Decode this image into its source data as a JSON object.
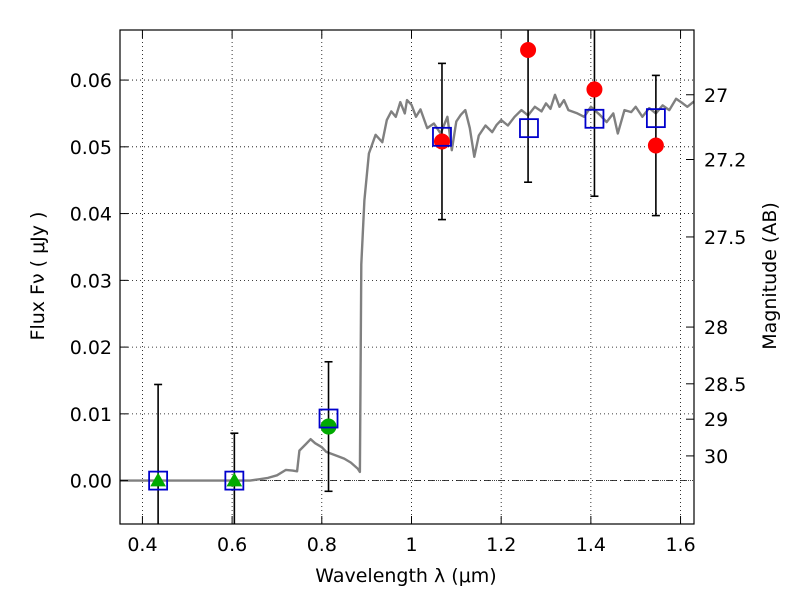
{
  "chart_data": {
    "type": "scatter",
    "xlabel": "Wavelength  λ (μm)",
    "ylabel": "Flux  Fν  ( μJy )",
    "y2label": "Magnitude (AB)",
    "xlim": [
      0.35,
      1.63
    ],
    "ylim": [
      -0.0065,
      0.0675
    ],
    "x_ticks": [
      0.4,
      0.6,
      0.8,
      1.0,
      1.2,
      1.4,
      1.6
    ],
    "x_tick_labels": [
      "0.4",
      "0.6",
      "0.8",
      "1",
      "1.2",
      "1.4",
      "1.6"
    ],
    "y_ticks": [
      0.0,
      0.01,
      0.02,
      0.03,
      0.04,
      0.05,
      0.06
    ],
    "y_tick_labels": [
      "0.00",
      "0.01",
      "0.02",
      "0.03",
      "0.04",
      "0.05",
      "0.06"
    ],
    "y2_ticks": [
      {
        "label": "27",
        "flux": 0.0578
      },
      {
        "label": "27.2",
        "flux": 0.0481
      },
      {
        "label": "27.5",
        "flux": 0.0365
      },
      {
        "label": "28",
        "flux": 0.023
      },
      {
        "label": "28.5",
        "flux": 0.0145
      },
      {
        "label": "29",
        "flux": 0.0092
      },
      {
        "label": "30",
        "flux": 0.0037
      }
    ],
    "grid": true,
    "zero_line": true,
    "colors": {
      "model": "#808080",
      "model_points": "#0000cc",
      "detections": "#ff0000",
      "nondetections": "#00aa00",
      "errorbars": "#000000"
    },
    "model_spectrum": [
      [
        0.35,
        0.0
      ],
      [
        0.6,
        0.0
      ],
      [
        0.64,
        0.0
      ],
      [
        0.66,
        0.0002
      ],
      [
        0.68,
        0.0004
      ],
      [
        0.7,
        0.0008
      ],
      [
        0.72,
        0.0016
      ],
      [
        0.735,
        0.0015
      ],
      [
        0.745,
        0.0014
      ],
      [
        0.75,
        0.0045
      ],
      [
        0.765,
        0.0055
      ],
      [
        0.775,
        0.0062
      ],
      [
        0.785,
        0.0056
      ],
      [
        0.8,
        0.005
      ],
      [
        0.81,
        0.0043
      ],
      [
        0.83,
        0.0038
      ],
      [
        0.85,
        0.0033
      ],
      [
        0.865,
        0.0027
      ],
      [
        0.88,
        0.0018
      ],
      [
        0.885,
        0.0013
      ],
      [
        0.888,
        0.0324
      ],
      [
        0.895,
        0.042
      ],
      [
        0.905,
        0.049
      ],
      [
        0.92,
        0.0518
      ],
      [
        0.935,
        0.0507
      ],
      [
        0.945,
        0.054
      ],
      [
        0.955,
        0.0553
      ],
      [
        0.965,
        0.0545
      ],
      [
        0.975,
        0.0567
      ],
      [
        0.985,
        0.055
      ],
      [
        0.99,
        0.057
      ],
      [
        1.0,
        0.0563
      ],
      [
        1.01,
        0.0545
      ],
      [
        1.02,
        0.0556
      ],
      [
        1.035,
        0.0528
      ],
      [
        1.05,
        0.0535
      ],
      [
        1.065,
        0.052
      ],
      [
        1.08,
        0.0545
      ],
      [
        1.09,
        0.0495
      ],
      [
        1.1,
        0.0538
      ],
      [
        1.11,
        0.0548
      ],
      [
        1.12,
        0.0555
      ],
      [
        1.13,
        0.0528
      ],
      [
        1.14,
        0.0485
      ],
      [
        1.15,
        0.0517
      ],
      [
        1.165,
        0.0532
      ],
      [
        1.18,
        0.0522
      ],
      [
        1.19,
        0.0533
      ],
      [
        1.2,
        0.054
      ],
      [
        1.215,
        0.0532
      ],
      [
        1.23,
        0.0545
      ],
      [
        1.245,
        0.0555
      ],
      [
        1.26,
        0.0547
      ],
      [
        1.275,
        0.056
      ],
      [
        1.29,
        0.0553
      ],
      [
        1.3,
        0.0565
      ],
      [
        1.31,
        0.0557
      ],
      [
        1.32,
        0.0578
      ],
      [
        1.33,
        0.056
      ],
      [
        1.34,
        0.057
      ],
      [
        1.35,
        0.0555
      ],
      [
        1.37,
        0.055
      ],
      [
        1.385,
        0.0545
      ],
      [
        1.4,
        0.056
      ],
      [
        1.42,
        0.0548
      ],
      [
        1.435,
        0.0537
      ],
      [
        1.45,
        0.055
      ],
      [
        1.46,
        0.052
      ],
      [
        1.475,
        0.0555
      ],
      [
        1.49,
        0.0552
      ],
      [
        1.5,
        0.056
      ],
      [
        1.515,
        0.0545
      ],
      [
        1.53,
        0.0558
      ],
      [
        1.545,
        0.055
      ],
      [
        1.56,
        0.0562
      ],
      [
        1.575,
        0.0555
      ],
      [
        1.59,
        0.0572
      ],
      [
        1.605,
        0.0565
      ],
      [
        1.615,
        0.056
      ],
      [
        1.63,
        0.0568
      ]
    ],
    "observations": [
      {
        "x": 0.435,
        "y": 0.0,
        "err": 0.0144,
        "marker": "triangle"
      },
      {
        "x": 0.605,
        "y": 0.0,
        "err": 0.0071,
        "marker": "triangle"
      },
      {
        "x": 0.815,
        "y": 0.0081,
        "err": 0.0097,
        "marker": "circle-green"
      },
      {
        "x": 1.068,
        "y": 0.0508,
        "err": 0.0117,
        "marker": "circle-red"
      },
      {
        "x": 1.26,
        "y": 0.0645,
        "err": 0.0198,
        "marker": "circle-red"
      },
      {
        "x": 1.408,
        "y": 0.0586,
        "err": 0.016,
        "marker": "circle-red"
      },
      {
        "x": 1.545,
        "y": 0.0502,
        "err": 0.0105,
        "marker": "circle-red"
      }
    ],
    "model_photometry": [
      {
        "x": 0.435,
        "y": 0.0
      },
      {
        "x": 0.605,
        "y": 0.0
      },
      {
        "x": 0.815,
        "y": 0.0093
      },
      {
        "x": 1.068,
        "y": 0.0515
      },
      {
        "x": 1.262,
        "y": 0.0528
      },
      {
        "x": 1.408,
        "y": 0.0542
      },
      {
        "x": 1.545,
        "y": 0.0543
      }
    ]
  }
}
